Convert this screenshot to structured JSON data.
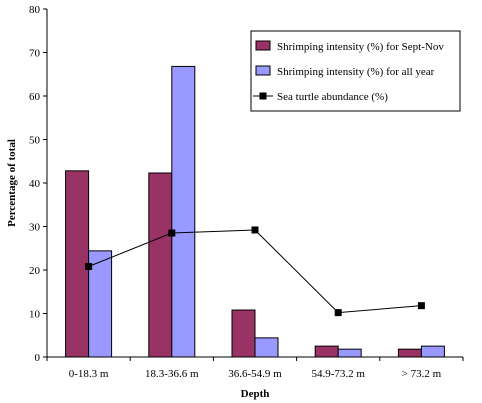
{
  "chart_data": {
    "type": "bar",
    "categories": [
      "0-18.3 m",
      "18.3-36.6 m",
      "36.6-54.9 m",
      "54.9-73.2 m",
      "> 73.2 m"
    ],
    "series": [
      {
        "name": "Shrimping intensity (%) for Sept-Nov",
        "kind": "bar",
        "color": "#993366",
        "values": [
          42.8,
          42.3,
          10.8,
          2.5,
          1.8
        ]
      },
      {
        "name": "Shrimping intensity (%) for all year",
        "kind": "bar",
        "color": "#9999ff",
        "values": [
          24.4,
          66.8,
          4.4,
          1.8,
          2.5
        ]
      },
      {
        "name": "Sea turtle abundance (%)",
        "kind": "line",
        "color": "#000000",
        "marker": "square",
        "values": [
          20.8,
          28.5,
          29.2,
          10.2,
          11.8
        ]
      }
    ],
    "xlabel": "Depth",
    "ylabel": "Percentage of total",
    "ylim": [
      0,
      80
    ],
    "yticks": [
      0,
      10,
      20,
      30,
      40,
      50,
      60,
      70,
      80
    ],
    "grid": false,
    "legend_position": "top-right"
  }
}
